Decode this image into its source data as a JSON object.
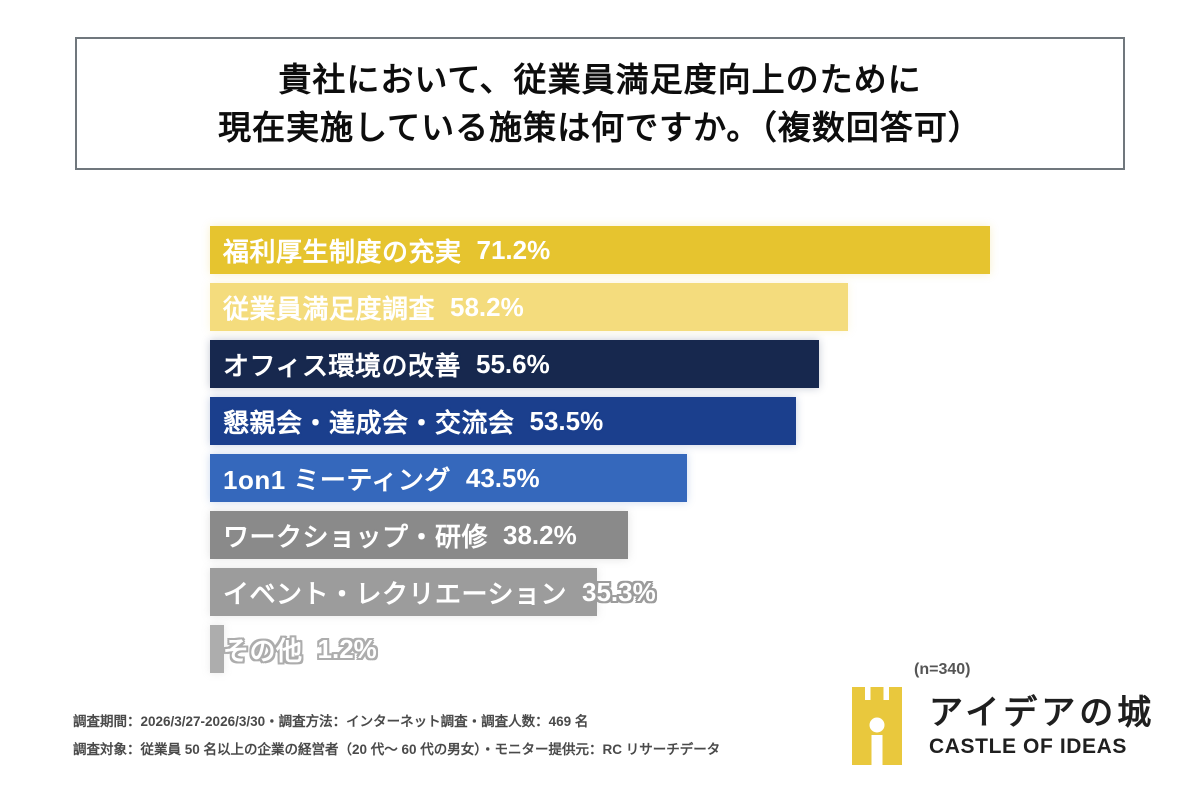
{
  "title": {
    "line1": "貴社において、従業員満足度向上のために",
    "line2": "現在実施している施策は何ですか。（複数回答可）"
  },
  "chart_data": {
    "type": "bar",
    "orientation": "horizontal",
    "title": "貴社において、従業員満足度向上のために現在実施している施策は何ですか。（複数回答可）",
    "categories": [
      "福利厚生制度の充実",
      "従業員満足度調査",
      "オフィス環境の改善",
      "懇親会・達成会・交流会",
      "1on1 ミーティング",
      "ワークショップ・研修",
      "イベント・レクリエーション",
      "その他"
    ],
    "values": [
      71.2,
      58.2,
      55.6,
      53.5,
      43.5,
      38.2,
      35.3,
      1.2
    ],
    "value_labels": [
      "71.2%",
      "58.2%",
      "55.6%",
      "53.5%",
      "43.5%",
      "38.2%",
      "35.3%",
      "1.2%"
    ],
    "bar_colors": [
      "#E6C42F",
      "#F4DC7D",
      "#17284E",
      "#1B3F8D",
      "#3568BC",
      "#8A8A8A",
      "#9C9C9C",
      "#ADADAD"
    ],
    "unit": "%",
    "xlim": [
      0,
      75
    ],
    "grid": false,
    "legend": false,
    "value_label_position": "inside-start",
    "n_label": "(n=340)",
    "sample_size": 340
  },
  "footer": {
    "line1": "調査期間：2026/3/27-2026/3/30・調査方法：インターネット調査・調査人数：469 名",
    "line2": "調査対象：従業員 50 名以上の企業の経営者（20 代〜 60 代の男女）・モニター提供元：RC リサーチデータ"
  },
  "logo": {
    "jp": "アイデアの城",
    "en": "CASTLE OF IDEAS",
    "icon": "castle-icon",
    "brand_color": "#E9C83D",
    "text_color": "#1F1F1F"
  }
}
